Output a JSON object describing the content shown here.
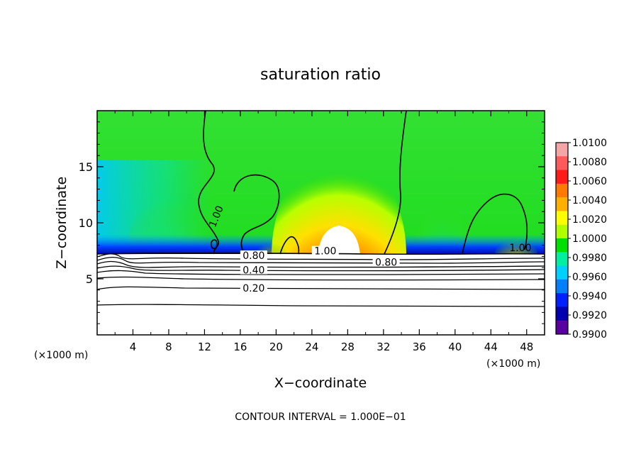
{
  "chart_data": {
    "type": "heatmap",
    "title": "saturation ratio",
    "xlabel": "X−coordinate",
    "ylabel": "Z−coordinate",
    "x_unit_left": "(×1000 m)",
    "x_unit_right": "(×1000 m)",
    "footer": "CONTOUR INTERVAL = 1.000E−01",
    "xlim": [
      0,
      50
    ],
    "ylim": [
      0,
      20
    ],
    "x_ticks": [
      4,
      8,
      12,
      16,
      20,
      24,
      28,
      32,
      36,
      40,
      44,
      48
    ],
    "y_ticks": [
      5,
      10,
      15
    ],
    "colorbar": {
      "levels": [
        "1.0100",
        "1.0080",
        "1.0060",
        "1.0040",
        "1.0020",
        "1.0000",
        "0.9980",
        "0.9960",
        "0.9940",
        "0.9920",
        "0.9900"
      ],
      "colors": [
        "#f4a6a6",
        "#ff5a5a",
        "#ff1a1a",
        "#ff7a00",
        "#ffb000",
        "#ffff00",
        "#b0ff00",
        "#00e000",
        "#00f0a0",
        "#00d0ff",
        "#0080ff",
        "#0020ff",
        "#0000b0",
        "#5a00a0"
      ]
    },
    "contour_labels": [
      {
        "text": "1.00",
        "x": 13.5,
        "z": 10.5
      },
      {
        "text": "1.00",
        "x": 25.5,
        "z": 7.3
      },
      {
        "text": "0.80",
        "x": 17.5,
        "z": 6.9
      },
      {
        "text": "0.80",
        "x": 32.3,
        "z": 6.3
      },
      {
        "text": "0.40",
        "x": 17.5,
        "z": 5.6
      },
      {
        "text": "0.20",
        "x": 17.5,
        "z": 4.0
      },
      {
        "text": "1.00",
        "x": 47.3,
        "z": 7.6
      }
    ],
    "cloud_base_z": 7.3
  }
}
